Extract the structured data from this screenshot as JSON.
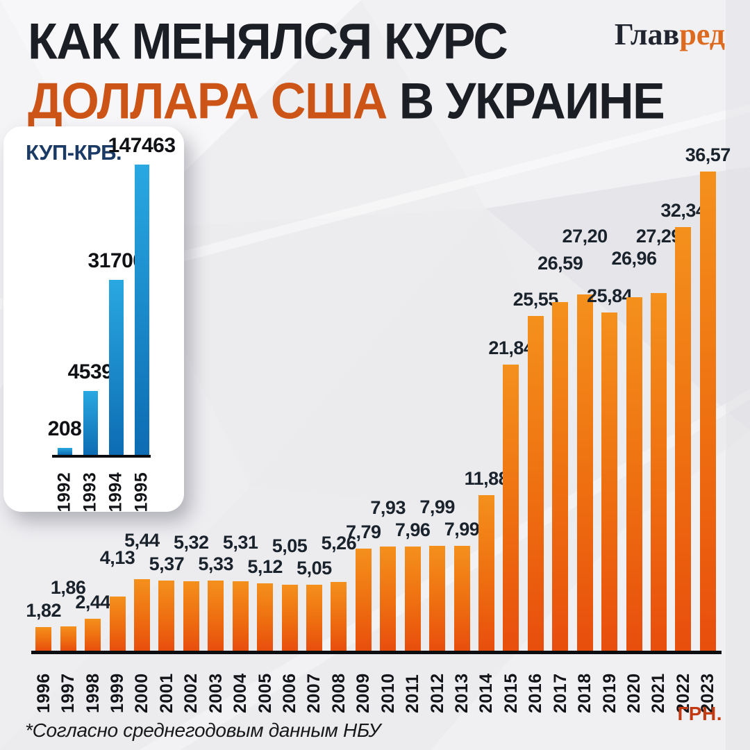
{
  "header": {
    "title_line1": "КАК МЕНЯЛСЯ КУРС",
    "title_line2_highlight": "ДОЛЛАРА США",
    "title_line2_rest": " В УКРАИНЕ",
    "logo_part1": "Глав",
    "logo_part2": "ред"
  },
  "footer": {
    "note": "*Согласно среднегодовым данным НБУ"
  },
  "colors": {
    "background": "#ECECEE",
    "title_dark": "#1B1E24",
    "title_orange": "#CC5417",
    "logo_dark": "#20242E",
    "logo_orange": "#DD6A1E",
    "bar_orange_top": "#F4901C",
    "bar_orange_mid": "#EE6E10",
    "bar_orange_bottom": "#E84E0D",
    "bar_blue_top": "#29A8E1",
    "bar_blue_bottom": "#0D6CB3",
    "inset_title_blue": "#1B3B66",
    "value_label_dark": "#1A222C",
    "axis_black": "#0C0D10",
    "grn_red": "#C13A12"
  },
  "chart_data": [
    {
      "type": "bar",
      "title": "КУП-КРБ.",
      "unit": "КУП-КРБ.",
      "categories": [
        "1992",
        "1993",
        "1994",
        "1995"
      ],
      "values": [
        208,
        4539,
        31700,
        147463
      ],
      "labels": [
        "208",
        "4539",
        "31700",
        "147463"
      ],
      "xlabel": "",
      "ylabel": "",
      "ylim": [
        0,
        147463
      ],
      "grid": false,
      "legend": false
    },
    {
      "type": "bar",
      "title": "КАК МЕНЯЛСЯ КУРС ДОЛЛАРА США В УКРАИНЕ",
      "unit": "ГРН.",
      "categories": [
        "1996",
        "1997",
        "1998",
        "1999",
        "2000",
        "2001",
        "2002",
        "2003",
        "2004",
        "2005",
        "2006",
        "2007",
        "2008",
        "2009",
        "2010",
        "2011",
        "2012",
        "2013",
        "2014",
        "2015",
        "2016",
        "2017",
        "2018",
        "2019",
        "2020",
        "2021",
        "2022",
        "2023"
      ],
      "values": [
        1.82,
        1.86,
        2.44,
        4.13,
        5.44,
        5.37,
        5.32,
        5.33,
        5.31,
        5.12,
        5.05,
        5.05,
        5.26,
        7.79,
        7.93,
        7.96,
        7.99,
        7.99,
        11.88,
        21.84,
        25.55,
        26.59,
        27.2,
        25.84,
        26.96,
        27.29,
        32.34,
        36.57
      ],
      "labels": [
        "1,82",
        "1,86",
        "2,44",
        "4,13",
        "5,44",
        "5,37",
        "5,32",
        "5,33",
        "5,31",
        "5,12",
        "5,05",
        "5,05",
        "5,26",
        "7,79",
        "7,93",
        "7,96",
        "7,99",
        "7,99",
        "11,88",
        "21,84",
        "25,55",
        "26,59",
        "27,20",
        "25,84",
        "26,96",
        "27,29",
        "32,34",
        "36,57"
      ],
      "xlabel": "",
      "ylabel": "ГРН.",
      "ylim": [
        0,
        36.57
      ],
      "grid": false,
      "legend": false
    }
  ]
}
